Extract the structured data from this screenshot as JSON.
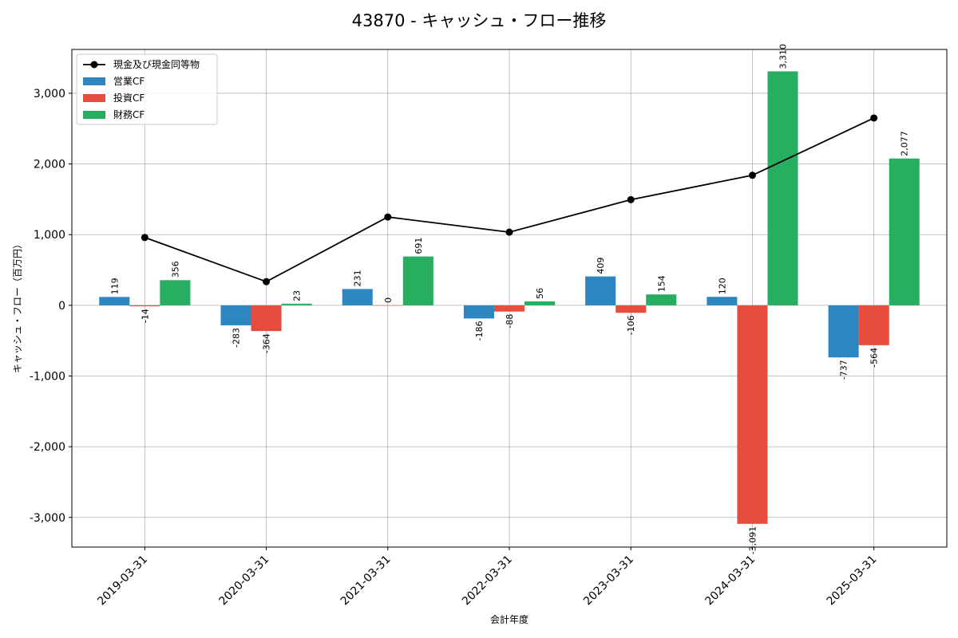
{
  "chart_data": {
    "type": "bar",
    "title": "43870 - キャッシュ・フロー推移",
    "xlabel": "会計年度",
    "ylabel": "キャッシュ・フロー（百万円）",
    "categories": [
      "2019-03-31",
      "2020-03-31",
      "2021-03-31",
      "2022-03-31",
      "2023-03-31",
      "2024-03-31",
      "2025-03-31"
    ],
    "ylim": [
      -3420,
      3620
    ],
    "yticks": [
      -3000,
      -2000,
      -1000,
      0,
      1000,
      2000,
      3000
    ],
    "ytick_labels": [
      "-3,000",
      "-2,000",
      "-1,000",
      "0",
      "1,000",
      "2,000",
      "3,000"
    ],
    "grid": true,
    "legend_position": "top-left",
    "series": [
      {
        "name": "営業CF",
        "kind": "bar",
        "color": "#2e86c1",
        "values": [
          119,
          -283,
          231,
          -186,
          409,
          120,
          -737
        ],
        "labels": [
          "119",
          "-283",
          "231",
          "-186",
          "409",
          "120",
          "-737"
        ]
      },
      {
        "name": "投資CF",
        "kind": "bar",
        "color": "#e74c3c",
        "values": [
          -14,
          -364,
          0,
          -88,
          -106,
          -3091,
          -564
        ],
        "labels": [
          "-14",
          "-364",
          "0",
          "-88",
          "-106",
          "-3,091",
          "-564"
        ]
      },
      {
        "name": "財務CF",
        "kind": "bar",
        "color": "#27ae60",
        "values": [
          356,
          23,
          691,
          56,
          154,
          3310,
          2077
        ],
        "labels": [
          "356",
          "23",
          "691",
          "56",
          "154",
          "3,310",
          "2,077"
        ]
      }
    ],
    "line": {
      "name": "現金及び現金同等物",
      "kind": "line",
      "color": "#000000",
      "values": [
        960,
        335,
        1250,
        1035,
        1495,
        1840,
        2650
      ]
    }
  }
}
